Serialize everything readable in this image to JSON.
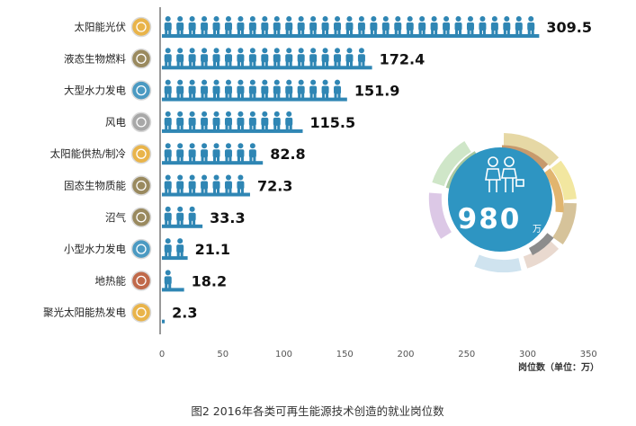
{
  "chart_data": {
    "type": "bar",
    "orientation": "horizontal",
    "categories": [
      "太阳能光伏",
      "液态生物燃料",
      "大型水力发电",
      "风电",
      "太阳能供热/制冷",
      "固态生物质能",
      "沼气",
      "小型水力发电",
      "地热能",
      "聚光太阳能热发电"
    ],
    "values": [
      309.5,
      172.4,
      151.9,
      115.5,
      82.8,
      72.3,
      33.3,
      21.1,
      18.2,
      2.3
    ],
    "value_labels": [
      "309.5",
      "172.4",
      "151.9",
      "115.5",
      "82.8",
      "72.3",
      "33.3",
      "21.1",
      "18.2",
      "2.3"
    ],
    "xlim": [
      0,
      350
    ],
    "xticks": [
      "0",
      "50",
      "100",
      "150",
      "200",
      "250",
      "300",
      "350"
    ],
    "xlabel": "岗位数（单位：万）",
    "category_icons": [
      "sun-icon",
      "leaf-icon",
      "water-drop-icon",
      "wind-icon",
      "sun-icon",
      "leaf-icon",
      "leaf-icon",
      "water-drop-icon",
      "volcano-icon",
      "sun-icon"
    ],
    "icon_colors": [
      "#e9b44a",
      "#9a8a5f",
      "#4b9ac2",
      "#a8a8a8",
      "#e9b44a",
      "#9a8a5f",
      "#9a8a5f",
      "#4b9ac2",
      "#c0694a",
      "#e9b44a"
    ],
    "bar_color": "#2f86b4",
    "grid": false,
    "caption": "图2 2016年各类可再生能源技术创造的就业岗位数",
    "badge": {
      "value": "980",
      "unit": "万",
      "color": "#2e95c2"
    }
  }
}
